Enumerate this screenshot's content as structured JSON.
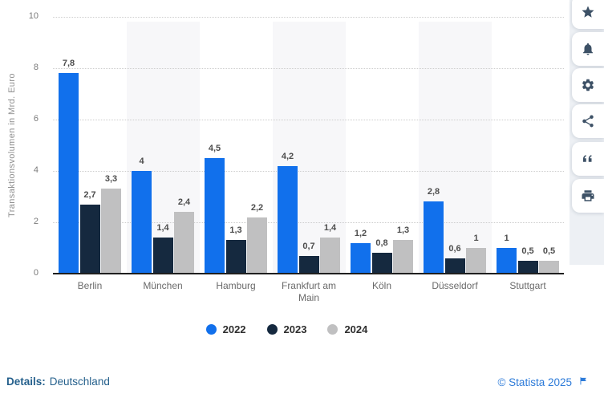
{
  "chart_data": {
    "type": "bar",
    "title": "",
    "ylabel": "Transaktionsvolumen in Mrd. Euro",
    "xlabel": "",
    "ylim": [
      0,
      10
    ],
    "yticks": [
      0,
      2,
      4,
      6,
      8,
      10
    ],
    "grid": "horizontal-dotted",
    "legend_position": "bottom",
    "striped_category_indices": [
      1,
      3,
      5
    ],
    "categories": [
      "Berlin",
      "München",
      "Hamburg",
      "Frankfurt am Main",
      "Köln",
      "Düsseldorf",
      "Stuttgart"
    ],
    "series": [
      {
        "name": "2022",
        "color": "#1170ec",
        "values": [
          7.8,
          4,
          4.5,
          4.2,
          1.2,
          2.8,
          1
        ],
        "labels": [
          "7,8",
          "4",
          "4,5",
          "4,2",
          "1,2",
          "2,8",
          "1"
        ]
      },
      {
        "name": "2023",
        "color": "#15293f",
        "values": [
          2.7,
          1.4,
          1.3,
          0.7,
          0.8,
          0.6,
          0.5
        ],
        "labels": [
          "2,7",
          "1,4",
          "1,3",
          "0,7",
          "0,8",
          "0,6",
          "0,5"
        ]
      },
      {
        "name": "2024",
        "color": "#c0c0c1",
        "values": [
          3.3,
          2.4,
          2.2,
          1.4,
          1.3,
          1,
          0.5
        ],
        "labels": [
          "3,3",
          "2,4",
          "2,2",
          "1,4",
          "1,3",
          "1",
          "0,5"
        ]
      }
    ]
  },
  "sidebar": {
    "icons": [
      "favorite-star",
      "notification-bell",
      "settings-gear",
      "share",
      "cite-quote",
      "print"
    ]
  },
  "footer": {
    "details_label": "Details:",
    "details_value": "Deutschland",
    "copyright": "© Statista 2025"
  }
}
